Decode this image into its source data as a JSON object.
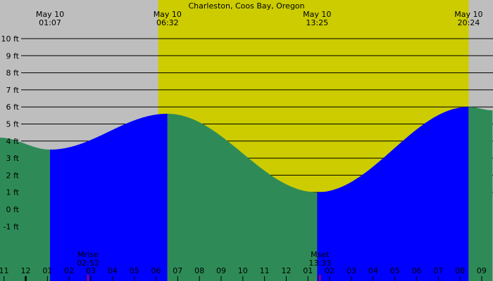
{
  "chart_data": {
    "type": "area",
    "title": "Charleston, Coos Bay, Oregon",
    "y_unit": "ft",
    "ylim": [
      -2,
      10
    ],
    "y_ticks": [
      -1,
      0,
      1,
      2,
      3,
      4,
      5,
      6,
      7,
      8,
      9,
      10
    ],
    "y_tick_labels": [
      "-1 ft",
      "0 ft",
      "1 ft",
      "2 ft",
      "3 ft",
      "4 ft",
      "5 ft",
      "6 ft",
      "7 ft",
      "8 ft",
      "9 ft",
      "10 ft"
    ],
    "x_range_hours": [
      -1.2,
      21.5
    ],
    "x_ticks": [
      {
        "h": -1,
        "label": "11"
      },
      {
        "h": 0,
        "label": "12"
      },
      {
        "h": 1,
        "label": "01"
      },
      {
        "h": 2,
        "label": "02"
      },
      {
        "h": 3,
        "label": "03"
      },
      {
        "h": 4,
        "label": "04"
      },
      {
        "h": 5,
        "label": "05"
      },
      {
        "h": 6,
        "label": "06"
      },
      {
        "h": 7,
        "label": "07"
      },
      {
        "h": 8,
        "label": "08"
      },
      {
        "h": 9,
        "label": "09"
      },
      {
        "h": 10,
        "label": "10"
      },
      {
        "h": 11,
        "label": "11"
      },
      {
        "h": 12,
        "label": "12"
      },
      {
        "h": 13,
        "label": "01"
      },
      {
        "h": 14,
        "label": "02"
      },
      {
        "h": 15,
        "label": "03"
      },
      {
        "h": 16,
        "label": "04"
      },
      {
        "h": 17,
        "label": "05"
      },
      {
        "h": 18,
        "label": "06"
      },
      {
        "h": 19,
        "label": "07"
      },
      {
        "h": 20,
        "label": "08"
      },
      {
        "h": 21,
        "label": "09"
      }
    ],
    "tide_extremes": [
      {
        "h": -1.2,
        "ft": 4.2
      },
      {
        "h": 1.12,
        "ft": 3.5,
        "date": "May 10",
        "time": "01:07"
      },
      {
        "h": 6.53,
        "ft": 5.6,
        "date": "May 10",
        "time": "06:32"
      },
      {
        "h": 13.42,
        "ft": 1.0,
        "date": "May 10",
        "time": "13:25"
      },
      {
        "h": 20.4,
        "ft": 6.0,
        "date": "May 10",
        "time": "20:24"
      },
      {
        "h": 21.5,
        "ft": 5.8
      }
    ],
    "daylight": {
      "start_h": 6.1,
      "end_h": 20.4
    },
    "moon_events": [
      {
        "label": "Mrise",
        "time": "02:52",
        "h": 2.87
      },
      {
        "label": "Mset",
        "time": "13:33",
        "h": 13.55
      }
    ],
    "colors": {
      "night": "#bebebe",
      "day": "#cccc00",
      "falling": "#2e8b57",
      "rising": "#0000ff",
      "moon_tick": "#ff0000"
    }
  }
}
